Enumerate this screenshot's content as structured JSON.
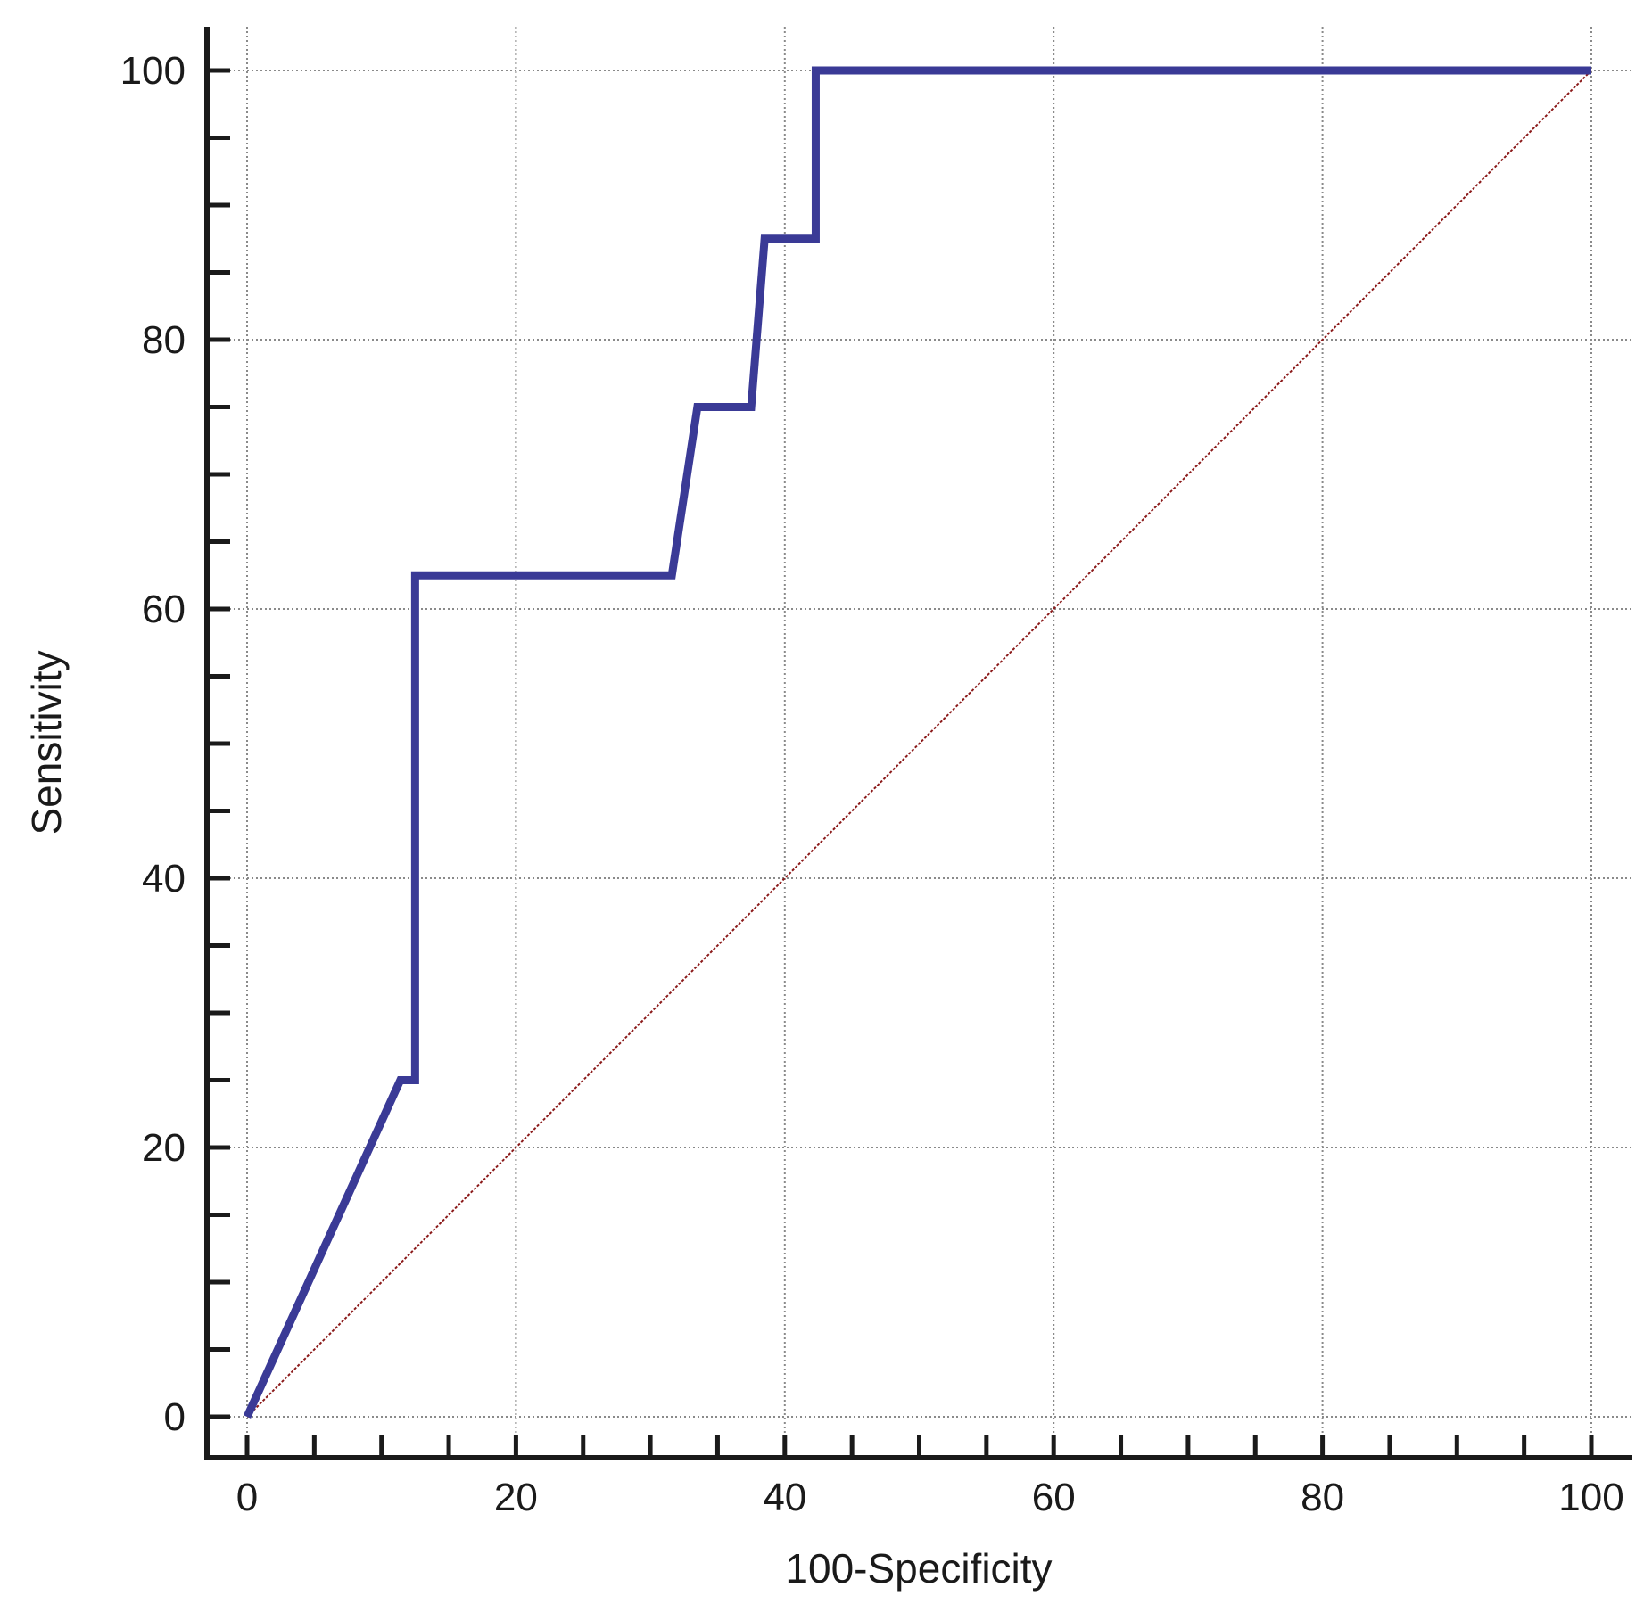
{
  "chart_data": {
    "type": "line",
    "xlabel": "100-Specificity",
    "ylabel": "Sensitivity",
    "xlim": [
      0,
      100
    ],
    "ylim": [
      0,
      100
    ],
    "x_ticks": [
      0,
      20,
      40,
      60,
      80,
      100
    ],
    "y_ticks": [
      0,
      20,
      40,
      60,
      80,
      100
    ],
    "x_minor_step": 5,
    "y_minor_step": 5,
    "grid": true,
    "series": [
      {
        "role": "roc-curve",
        "color": "#3a3a96",
        "points": [
          [
            0,
            0
          ],
          [
            11.4,
            25
          ],
          [
            12.5,
            25
          ],
          [
            12.5,
            62.5
          ],
          [
            31.6,
            62.5
          ],
          [
            33.5,
            75
          ],
          [
            37.5,
            75
          ],
          [
            38.5,
            87.5
          ],
          [
            42.3,
            87.5
          ],
          [
            42.3,
            100
          ],
          [
            100,
            100
          ]
        ]
      },
      {
        "role": "reference-diagonal",
        "color": "#8b1a1a",
        "points": [
          [
            0,
            0
          ],
          [
            100,
            100
          ]
        ]
      }
    ]
  }
}
